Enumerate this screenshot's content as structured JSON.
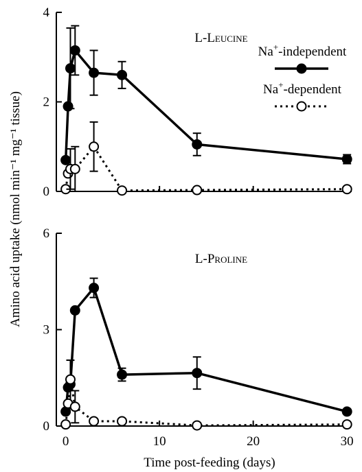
{
  "chart_data": {
    "type": "line",
    "xlabel": "Time post-feeding (days)",
    "ylabel": "Amino acid uptake (nmol min⁻¹ mg⁻¹ tissue)",
    "xlim": [
      -1,
      30.5
    ],
    "xticks": [
      0,
      10,
      20,
      30
    ],
    "legend": {
      "placement": "top-right",
      "entries": [
        {
          "label_base": "Na",
          "label_sup": "+",
          "label_rest": "-independent",
          "series": "independent"
        },
        {
          "label_base": "Na",
          "label_sup": "+",
          "label_rest": "-dependent",
          "series": "dependent"
        }
      ]
    },
    "panels": [
      {
        "title": "L-Leucine",
        "ylim": [
          0,
          4
        ],
        "yticks": [
          0,
          2,
          4
        ],
        "series": [
          {
            "key": "independent",
            "name": "Na+-independent",
            "style": "solid-filled",
            "x": [
              0,
              0.25,
              0.5,
              1,
              3,
              6,
              14,
              30
            ],
            "y": [
              0.7,
              1.9,
              2.75,
              3.15,
              2.65,
              2.6,
              1.05,
              0.72
            ],
            "err": [
              0.0,
              0.0,
              0.9,
              0.55,
              0.5,
              0.3,
              0.25,
              0.1
            ]
          },
          {
            "key": "dependent",
            "name": "Na+-dependent",
            "style": "dotted-open",
            "x": [
              0,
              0.25,
              0.5,
              1,
              3,
              6,
              14,
              30
            ],
            "y": [
              0.05,
              0.4,
              0.5,
              0.5,
              1.0,
              0.02,
              0.03,
              0.05
            ],
            "err": [
              0.0,
              0.0,
              0.45,
              0.5,
              0.55,
              0.0,
              0.0,
              0.0
            ]
          }
        ]
      },
      {
        "title": "L-Proline",
        "ylim": [
          0,
          6
        ],
        "yticks": [
          0,
          3,
          6
        ],
        "series": [
          {
            "key": "independent",
            "name": "Na+-independent",
            "style": "solid-filled",
            "x": [
              0,
              0.25,
              0.5,
              1,
              3,
              6,
              14,
              30
            ],
            "y": [
              0.45,
              1.2,
              1.3,
              3.6,
              4.3,
              1.6,
              1.65,
              0.45
            ],
            "err": [
              0.0,
              0.0,
              0.75,
              0.0,
              0.3,
              0.2,
              0.5,
              0.0
            ]
          },
          {
            "key": "dependent",
            "name": "Na+-dependent",
            "style": "dotted-open",
            "x": [
              0,
              0.25,
              0.5,
              1,
              3,
              6,
              14,
              30
            ],
            "y": [
              0.05,
              0.7,
              1.45,
              0.6,
              0.15,
              0.15,
              0.02,
              0.05
            ],
            "err": [
              0.0,
              0.0,
              0.0,
              0.5,
              0.0,
              0.0,
              0.0,
              0.0
            ]
          }
        ]
      }
    ]
  }
}
